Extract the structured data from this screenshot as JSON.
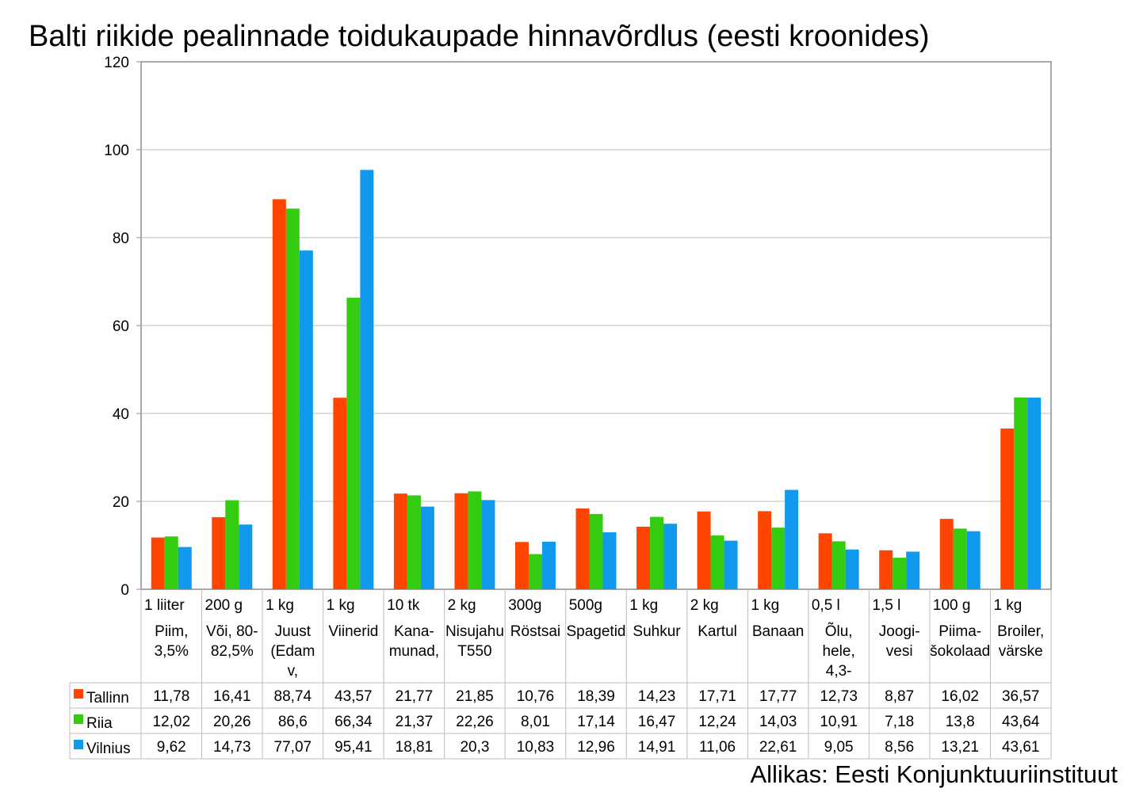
{
  "chart_data": {
    "type": "bar",
    "title": "Balti riikide pealinnade toidukaupade hinnavõrdlus (eesti kroonides)",
    "source": "Allikas: Eesti Konjunktuuriinstituut",
    "xlabel": "",
    "ylabel": "",
    "ylim": [
      0,
      120
    ],
    "yticks": [
      "0",
      "20",
      "40",
      "60",
      "80",
      "100",
      "120"
    ],
    "grid": true,
    "legend": "table-left",
    "categories": [
      {
        "unit": "1 liiter",
        "name": [
          "Piim,",
          "3,5%"
        ]
      },
      {
        "unit": "200 g",
        "name": [
          "Või, 80-",
          "82,5%"
        ]
      },
      {
        "unit": "1 kg",
        "name": [
          "Juust",
          "(Edam",
          "v,"
        ]
      },
      {
        "unit": "1 kg",
        "name": [
          "Viinerid"
        ]
      },
      {
        "unit": "10 tk",
        "name": [
          "Kana-",
          "munad,"
        ]
      },
      {
        "unit": "2 kg",
        "name": [
          "Nisujahu",
          "T550"
        ]
      },
      {
        "unit": "300g",
        "name": [
          "Röstsai"
        ]
      },
      {
        "unit": "500g",
        "name": [
          "Spagetid"
        ]
      },
      {
        "unit": "1 kg",
        "name": [
          "Suhkur"
        ]
      },
      {
        "unit": "2 kg",
        "name": [
          "Kartul"
        ]
      },
      {
        "unit": "1 kg",
        "name": [
          "Banaan"
        ]
      },
      {
        "unit": "0,5 l",
        "name": [
          "Õlu,",
          "hele,",
          "4,3-"
        ]
      },
      {
        "unit": "1,5 l",
        "name": [
          "Joogi-",
          "vesi"
        ]
      },
      {
        "unit": "100 g",
        "name": [
          "Piima-",
          "šokolaad"
        ]
      },
      {
        "unit": "1 kg",
        "name": [
          "Broiler,",
          "värske"
        ]
      }
    ],
    "series": [
      {
        "name": "Tallinn",
        "color": "#ff4500",
        "values": [
          11.78,
          16.41,
          88.74,
          43.57,
          21.77,
          21.85,
          10.76,
          18.39,
          14.23,
          17.71,
          17.77,
          12.73,
          8.87,
          16.02,
          36.57
        ],
        "labels": [
          "11,78",
          "16,41",
          "88,74",
          "43,57",
          "21,77",
          "21,85",
          "10,76",
          "18,39",
          "14,23",
          "17,71",
          "17,77",
          "12,73",
          "8,87",
          "16,02",
          "36,57"
        ]
      },
      {
        "name": "Riia",
        "color": "#33cc11",
        "values": [
          12.02,
          20.26,
          86.6,
          66.34,
          21.37,
          22.26,
          8.01,
          17.14,
          16.47,
          12.24,
          14.03,
          10.91,
          7.18,
          13.8,
          43.64
        ],
        "labels": [
          "12,02",
          "20,26",
          "86,6",
          "66,34",
          "21,37",
          "22,26",
          "8,01",
          "17,14",
          "16,47",
          "12,24",
          "14,03",
          "10,91",
          "7,18",
          "13,8",
          "43,64"
        ]
      },
      {
        "name": "Vilnius",
        "color": "#1199ee",
        "values": [
          9.62,
          14.73,
          77.07,
          95.41,
          18.81,
          20.3,
          10.83,
          12.96,
          14.91,
          11.06,
          22.61,
          9.05,
          8.56,
          13.21,
          43.61
        ],
        "labels": [
          "9,62",
          "14,73",
          "77,07",
          "95,41",
          "18,81",
          "20,3",
          "10,83",
          "12,96",
          "14,91",
          "11,06",
          "22,61",
          "9,05",
          "8,56",
          "13,21",
          "43,61"
        ]
      }
    ]
  }
}
